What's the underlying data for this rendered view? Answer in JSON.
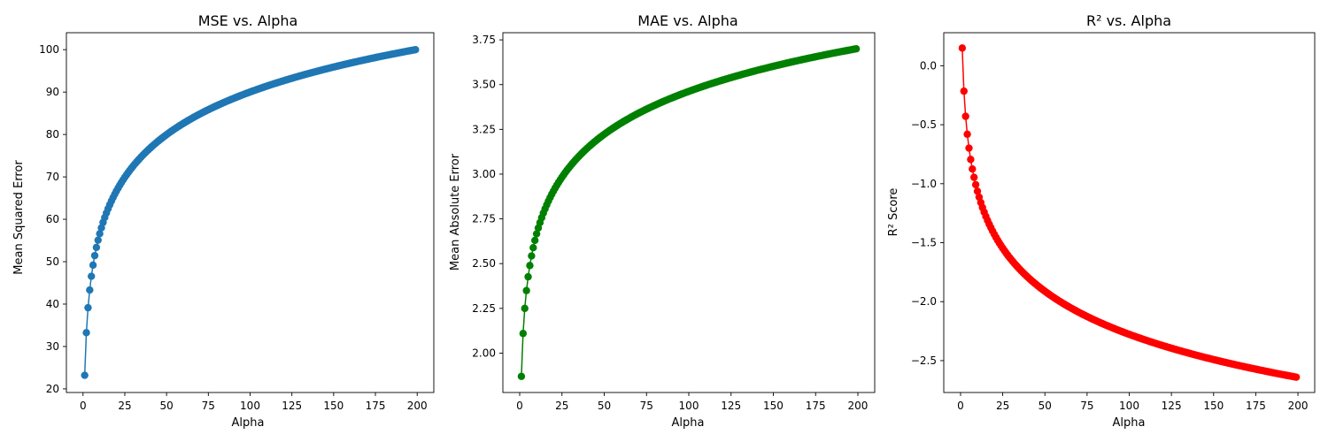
{
  "chart_data": [
    {
      "type": "line",
      "title": "MSE vs. Alpha",
      "xlabel": "Alpha",
      "ylabel": "Mean Squared Error",
      "xlim": [
        -9.95,
        209.95
      ],
      "ylim": [
        19.15,
        104.0
      ],
      "xticks": [
        0,
        25,
        50,
        75,
        100,
        125,
        150,
        175,
        200
      ],
      "yticks": [
        20,
        30,
        40,
        50,
        60,
        70,
        80,
        90,
        100
      ],
      "marker": "circle",
      "grid": false,
      "color": "#1f77b4",
      "curve": {
        "x_start": 1,
        "x_end": 199,
        "y_start": 23.2,
        "y_end": 100.0,
        "shape": "log-like rising"
      }
    },
    {
      "type": "line",
      "title": "MAE vs. Alpha",
      "xlabel": "Alpha",
      "ylabel": "Mean Absolute Error",
      "xlim": [
        -9.95,
        209.95
      ],
      "ylim": [
        1.78,
        3.79
      ],
      "xticks": [
        0,
        25,
        50,
        75,
        100,
        125,
        150,
        175,
        200
      ],
      "yticks": [
        2.0,
        2.25,
        2.5,
        2.75,
        3.0,
        3.25,
        3.5,
        3.75
      ],
      "ytick_labels": [
        "2.00",
        "2.25",
        "2.50",
        "2.75",
        "3.00",
        "3.25",
        "3.50",
        "3.75"
      ],
      "marker": "circle",
      "grid": false,
      "color": "#008000",
      "curve": {
        "x_start": 1,
        "x_end": 199,
        "y_start": 1.87,
        "y_end": 3.7,
        "shape": "log-like rising"
      }
    },
    {
      "type": "line",
      "title": "R² vs. Alpha",
      "xlabel": "Alpha",
      "ylabel": "R² Score",
      "xlim": [
        -9.95,
        209.95
      ],
      "ylim": [
        -2.77,
        0.28
      ],
      "xticks": [
        0,
        25,
        50,
        75,
        100,
        125,
        150,
        175,
        200
      ],
      "yticks": [
        0.0,
        -0.5,
        -1.0,
        -1.5,
        -2.0,
        -2.5
      ],
      "ytick_labels": [
        "0.0",
        "−0.5",
        "−1.0",
        "−1.5",
        "−2.0",
        "−2.5"
      ],
      "marker": "circle",
      "grid": false,
      "color": "#ff0000",
      "curve": {
        "x_start": 1,
        "x_end": 199,
        "y_start": 0.15,
        "y_end": -2.64,
        "shape": "log-like falling"
      }
    }
  ]
}
